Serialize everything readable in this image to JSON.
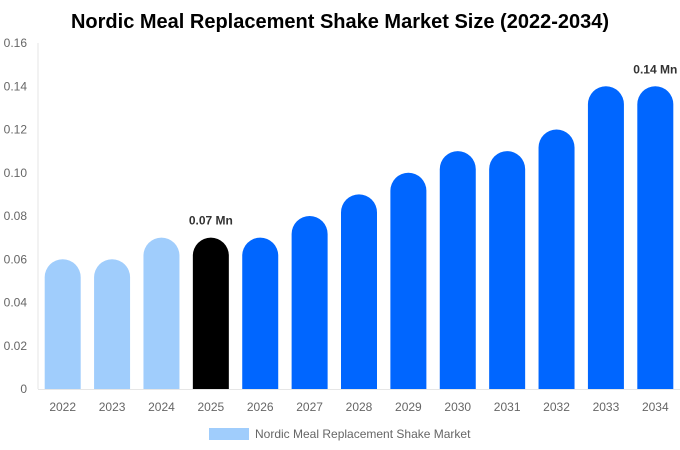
{
  "chart_data": {
    "type": "bar",
    "title": "Nordic Meal Replacement Shake Market Size (2022-2034)",
    "xlabel": "",
    "ylabel": "",
    "categories": [
      "2022",
      "2023",
      "2024",
      "2025",
      "2026",
      "2027",
      "2028",
      "2029",
      "2030",
      "2031",
      "2032",
      "2033",
      "2034"
    ],
    "series": [
      {
        "name": "Nordic Meal Replacement Shake Market",
        "values": [
          0.06,
          0.06,
          0.07,
          0.07,
          0.07,
          0.08,
          0.09,
          0.1,
          0.11,
          0.11,
          0.12,
          0.14,
          0.14
        ]
      }
    ],
    "bar_colors": [
      "#a0cdfc",
      "#a0cdfc",
      "#a0cdfc",
      "#000000",
      "#0066ff",
      "#0066ff",
      "#0066ff",
      "#0066ff",
      "#0066ff",
      "#0066ff",
      "#0066ff",
      "#0066ff",
      "#0066ff"
    ],
    "legend_color": "#a0cdfc",
    "data_labels": [
      {
        "category": "2025",
        "text": "0.07 Mn"
      },
      {
        "category": "2034",
        "text": "0.14 Mn"
      }
    ],
    "ylim": [
      0,
      0.16
    ],
    "yticks": [
      "0",
      "0.02",
      "0.04",
      "0.06",
      "0.08",
      "0.10",
      "0.12",
      "0.14",
      "0.16"
    ],
    "grid": false,
    "legend_position": "bottom"
  }
}
